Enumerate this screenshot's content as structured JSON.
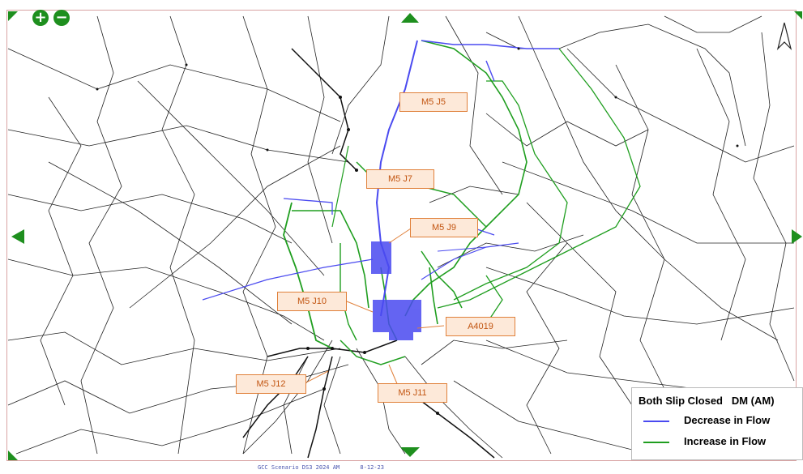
{
  "controls": {
    "zoom_in_glyph": "+",
    "zoom_out_glyph": "−"
  },
  "colors": {
    "decrease": "#4a4af0",
    "increase": "#1f9e1f",
    "network": "#222222",
    "callout_border": "#e0803a",
    "callout_text": "#c25511",
    "nav_arrows": "#1e8f1e"
  },
  "labels": {
    "m5_j5": "M5 J5",
    "m5_j7": "M5 J7",
    "m5_j9": "M5 J9",
    "m5_j10": "M5 J10",
    "a4019": "A4019",
    "m5_j12": "M5 J12",
    "m5_j11": "M5 J11"
  },
  "legend": {
    "title": "Both Slip Closed   DM (AM)",
    "items": [
      {
        "label": "Decrease in Flow",
        "color": "#4a4af0"
      },
      {
        "label": "Increase in Flow",
        "color": "#1f9e1f"
      }
    ]
  },
  "footer": "GCC Scenario DS3 2024 AM      8-12-23"
}
